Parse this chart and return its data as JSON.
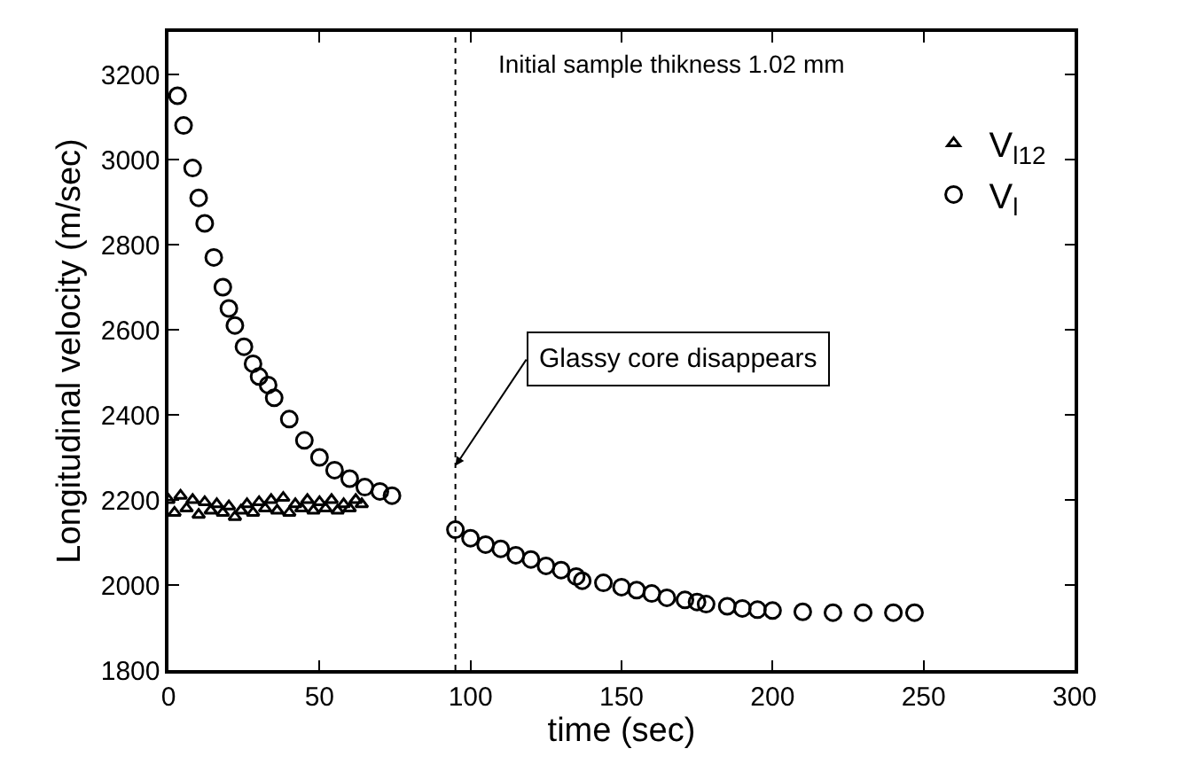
{
  "chart_data": {
    "type": "scatter",
    "xlabel": "time (sec)",
    "ylabel": "Longitudinal velocity (m/sec)",
    "xlim": [
      0,
      300
    ],
    "xticks": [
      0,
      50,
      100,
      150,
      200,
      250,
      300
    ],
    "ylim": [
      1800,
      3300
    ],
    "yticks": [
      1800,
      2000,
      2200,
      2400,
      2600,
      2800,
      3000,
      3200
    ],
    "legend": "top right",
    "annotations": [
      "Initial sample thikness 1.02 mm",
      {
        "text": "Glassy core disappears",
        "x": 95,
        "y": 2280
      }
    ],
    "ref_lines": [
      {
        "axis": "x",
        "value": 95,
        "color": "#000000",
        "line_style": "dotted"
      }
    ],
    "series": [
      {
        "name": "V$_{l12}$",
        "color": "#000000",
        "marker": "triangle",
        "x": [
          0,
          2,
          4,
          6,
          8,
          10,
          12,
          14,
          16,
          18,
          20,
          22,
          24,
          26,
          28,
          30,
          32,
          34,
          36,
          38,
          40,
          42,
          44,
          46,
          48,
          50,
          52,
          54,
          56,
          58,
          60,
          62,
          64
        ],
        "values": [
          2200,
          2170,
          2210,
          2180,
          2200,
          2165,
          2195,
          2175,
          2190,
          2170,
          2185,
          2160,
          2175,
          2190,
          2170,
          2195,
          2180,
          2200,
          2175,
          2205,
          2170,
          2190,
          2180,
          2200,
          2175,
          2195,
          2180,
          2200,
          2175,
          2190,
          2180,
          2200,
          2190
        ]
      },
      {
        "name": "V$_{l}$",
        "color": "#000000",
        "marker": "circle",
        "x": [
          3,
          5,
          8,
          10,
          12,
          15,
          18,
          20,
          22,
          25,
          28,
          30,
          33,
          35,
          40,
          45,
          50,
          55,
          60,
          65,
          70,
          74,
          95,
          100,
          105,
          110,
          115,
          120,
          125,
          130,
          135,
          137,
          144,
          150,
          155,
          160,
          165,
          171,
          175,
          178,
          185,
          190,
          195,
          200,
          210,
          220,
          230,
          240,
          247
        ],
        "values": [
          3150,
          3080,
          2980,
          2910,
          2850,
          2770,
          2700,
          2650,
          2610,
          2560,
          2520,
          2490,
          2470,
          2440,
          2390,
          2340,
          2300,
          2270,
          2250,
          2230,
          2220,
          2210,
          2130,
          2110,
          2095,
          2085,
          2070,
          2060,
          2045,
          2035,
          2020,
          2010,
          2005,
          1995,
          1988,
          1980,
          1970,
          1965,
          1960,
          1955,
          1950,
          1945,
          1942,
          1940,
          1937,
          1935,
          1935,
          1935,
          1935
        ]
      }
    ]
  }
}
